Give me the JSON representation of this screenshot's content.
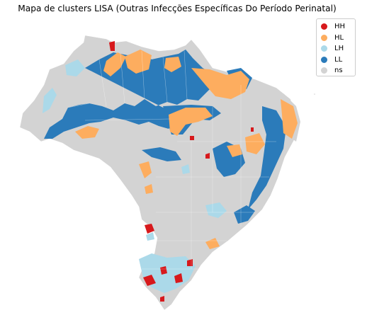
{
  "map": {
    "title": "Mapa de clusters LISA (Outras Infecções Específicas Do Período Perinatal)",
    "regions": [
      {
        "name": "LL",
        "color": "#2b7bba"
      },
      {
        "name": "HL",
        "color": "#fdad5f"
      },
      {
        "name": "LH",
        "color": "#abd9e9"
      },
      {
        "name": "HH",
        "color": "#d7191c"
      },
      {
        "name": "ns",
        "color": "#d3d3d3"
      }
    ]
  },
  "legend": {
    "items": [
      {
        "label": "HH",
        "color": "#d7191c"
      },
      {
        "label": "HL",
        "color": "#fdad5f"
      },
      {
        "label": "LH",
        "color": "#abd9e9"
      },
      {
        "label": "LL",
        "color": "#2b7bba"
      },
      {
        "label": "ns",
        "color": "#d3d3d3"
      }
    ]
  }
}
